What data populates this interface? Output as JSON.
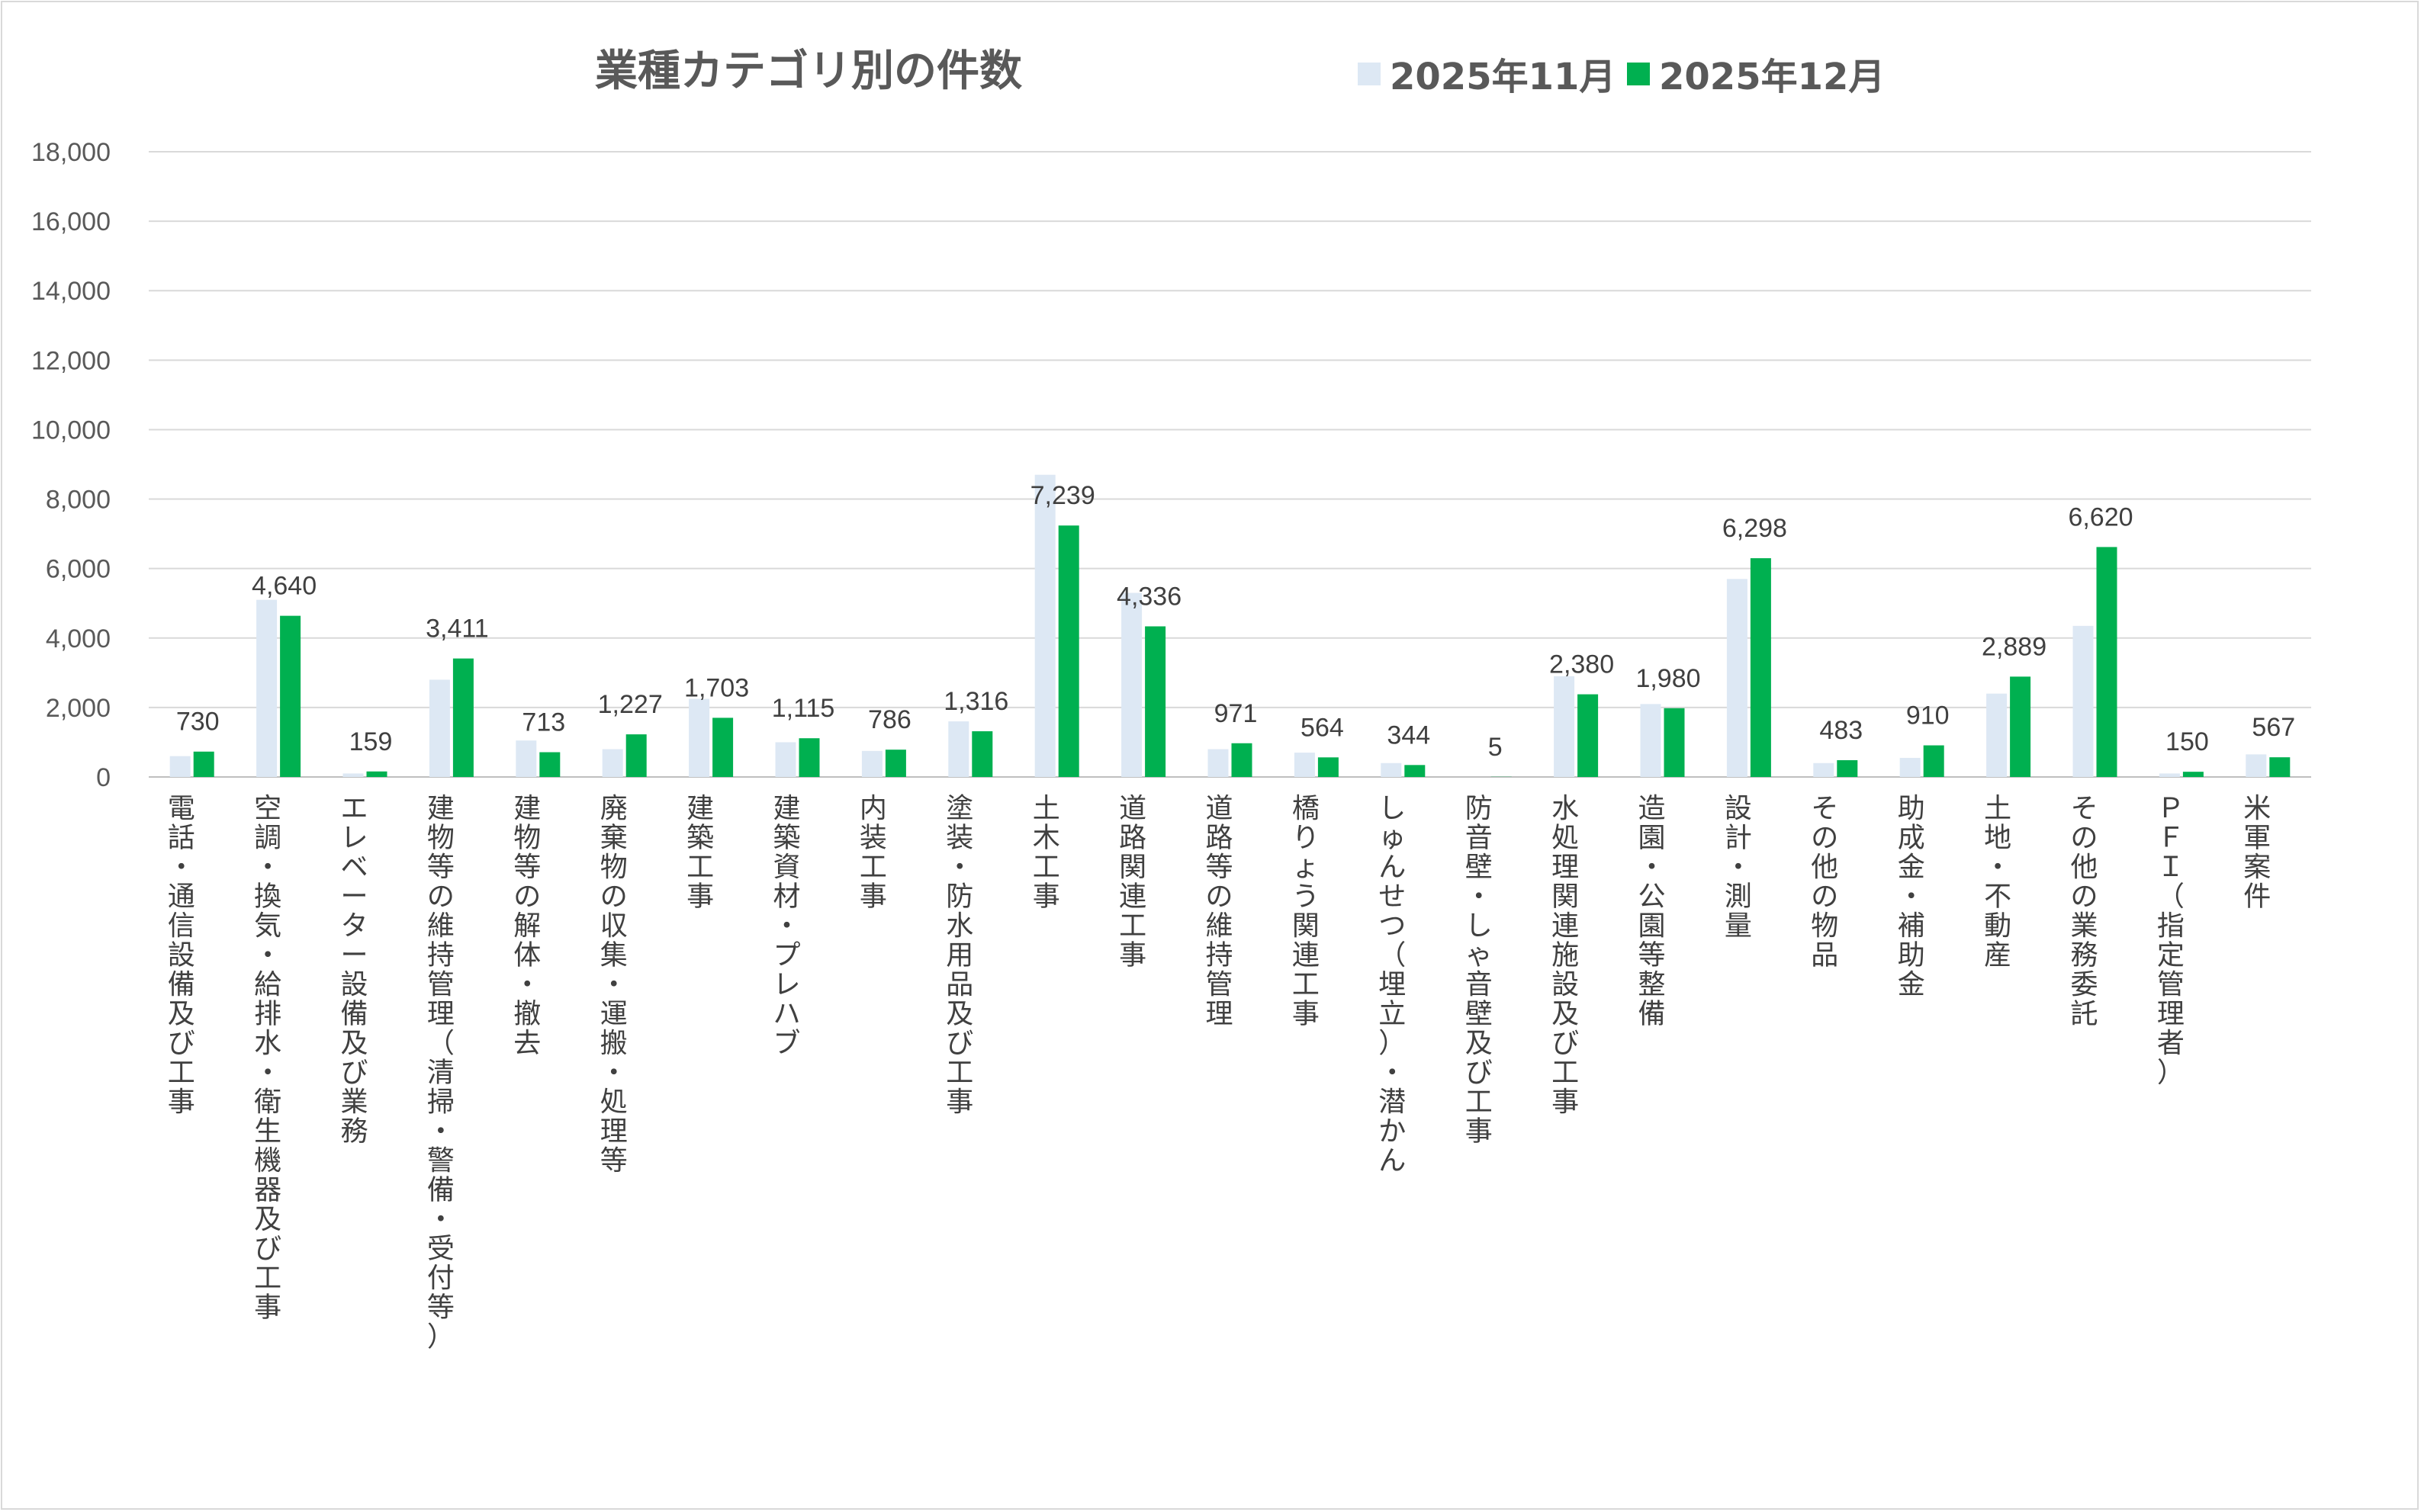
{
  "chart_data": {
    "type": "bar",
    "title": "業種カテゴリ別の件数",
    "xlabel": "",
    "ylabel": "",
    "ylim": [
      0,
      18000
    ],
    "yticks": [
      0,
      2000,
      4000,
      6000,
      8000,
      10000,
      12000,
      14000,
      16000,
      18000
    ],
    "ytick_labels": [
      "0",
      "2,000",
      "4,000",
      "6,000",
      "8,000",
      "10,000",
      "12,000",
      "14,000",
      "16,000",
      "18,000"
    ],
    "grid": true,
    "legend_position": "top",
    "categories": [
      "電話・通信設備及び工事",
      "空調・換気・給排水・衛生機器及び工事",
      "エレベーター設備及び業務",
      "建物等の維持管理（清掃・警備・受付等）",
      "建物等の解体・撤去",
      "廃棄物の収集・運搬・処理等",
      "建築工事",
      "建築資材・プレハブ",
      "内装工事",
      "塗装・防水用品及び工事",
      "土木工事",
      "道路関連工事",
      "道路等の維持管理",
      "橋りょう関連工事",
      "しゅんせつ（埋立）・潜かん",
      "防音壁・しゃ音壁及び工事",
      "水処理関連施設及び工事",
      "造園・公園等整備",
      "設計・測量",
      "その他の物品",
      "助成金・補助金",
      "土地・不動産",
      "その他の業務委託",
      "ＰＦＩ（指定管理者）",
      "米軍案件"
    ],
    "series": [
      {
        "name": "2025年11月",
        "color": "#dde8f4",
        "values": [
          600,
          5100,
          100,
          2800,
          1050,
          800,
          2250,
          1000,
          750,
          1600,
          8700,
          5300,
          800,
          700,
          400,
          0,
          2900,
          2100,
          5700,
          400,
          550,
          2400,
          4350,
          100,
          650
        ]
      },
      {
        "name": "2025年12月",
        "color": "#00b050",
        "values": [
          730,
          4640,
          159,
          3411,
          713,
          1227,
          1703,
          1115,
          786,
          1316,
          7239,
          4336,
          971,
          564,
          344,
          5,
          2380,
          1980,
          6298,
          483,
          910,
          2889,
          6620,
          150,
          567
        ],
        "data_labels": [
          "730",
          "4,640",
          "159",
          "3,411",
          "713",
          "1,227",
          "1,703",
          "1,115",
          "786",
          "1,316",
          "7,239",
          "4,336",
          "971",
          "564",
          "344",
          "5",
          "2,380",
          "1,980",
          "6,298",
          "483",
          "910",
          "2,889",
          "6,620",
          "150",
          "567"
        ]
      }
    ]
  }
}
